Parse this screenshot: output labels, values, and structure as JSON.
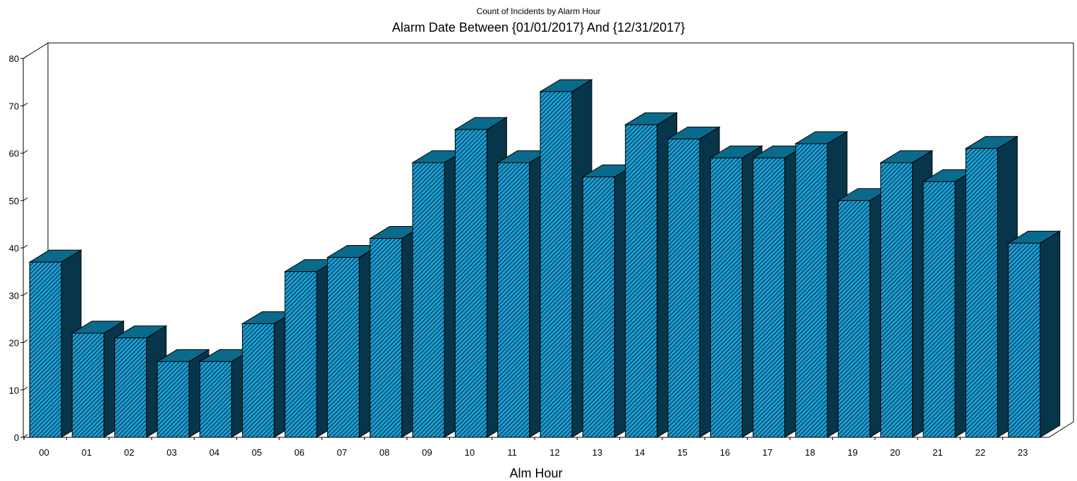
{
  "chart_data": {
    "type": "bar",
    "style": "3d-hatched",
    "title": "Count of Incidents by Alarm Hour",
    "subtitle": "Alarm Date Between {01/01/2017} And {12/31/2017}",
    "xlabel": "Alm Hour",
    "ylabel": "",
    "ylim": [
      0,
      80
    ],
    "yticks": [
      0,
      10,
      20,
      30,
      40,
      50,
      60,
      70,
      80
    ],
    "categories": [
      "00",
      "01",
      "02",
      "03",
      "04",
      "05",
      "06",
      "07",
      "08",
      "09",
      "10",
      "11",
      "12",
      "13",
      "14",
      "15",
      "16",
      "17",
      "18",
      "19",
      "20",
      "21",
      "22",
      "23"
    ],
    "values": [
      37,
      22,
      21,
      16,
      16,
      24,
      35,
      38,
      42,
      58,
      65,
      58,
      73,
      55,
      66,
      63,
      59,
      59,
      62,
      50,
      58,
      54,
      61,
      41
    ],
    "grid": false,
    "legend": "none",
    "colors": {
      "bar_front": "#1a9fd6",
      "bar_top": "#0a6a8c",
      "bar_side": "#07354a",
      "hatch": "#062a3c",
      "axis": "#000000"
    }
  }
}
